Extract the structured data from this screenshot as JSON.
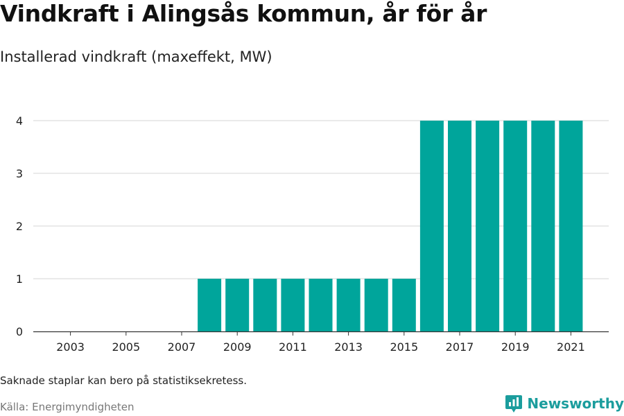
{
  "title": "Vindkraft i Alingsås kommun, år för år",
  "subtitle": "Installerad vindkraft (maxeffekt, MW)",
  "note": "Saknade staplar kan bero på statistiksekretess.",
  "source": "Källa: Energimyndigheten",
  "brand": "Newsworthy",
  "colors": {
    "bar": "#00a59b",
    "grid": "#dddddd",
    "axis": "#333333",
    "brand": "#1b9d9d"
  },
  "chart_data": {
    "type": "bar",
    "title": "Vindkraft i Alingsås kommun, år för år",
    "ylabel": "Installerad vindkraft (maxeffekt, MW)",
    "xlabel": "",
    "categories": [
      "2003",
      "2004",
      "2005",
      "2006",
      "2007",
      "2008",
      "2009",
      "2010",
      "2011",
      "2012",
      "2013",
      "2014",
      "2015",
      "2016",
      "2017",
      "2018",
      "2019",
      "2020",
      "2021"
    ],
    "values": [
      0,
      0,
      0,
      0,
      0,
      1,
      1,
      1,
      1,
      1,
      1,
      1,
      1,
      4,
      4,
      4,
      4,
      4,
      4
    ],
    "x_tick_labels": [
      "2003",
      "2005",
      "2007",
      "2009",
      "2011",
      "2013",
      "2015",
      "2017",
      "2019",
      "2021"
    ],
    "y_ticks": [
      0,
      1,
      2,
      3,
      4
    ],
    "ylim": [
      0,
      4
    ],
    "grid": true,
    "legend": "none"
  }
}
